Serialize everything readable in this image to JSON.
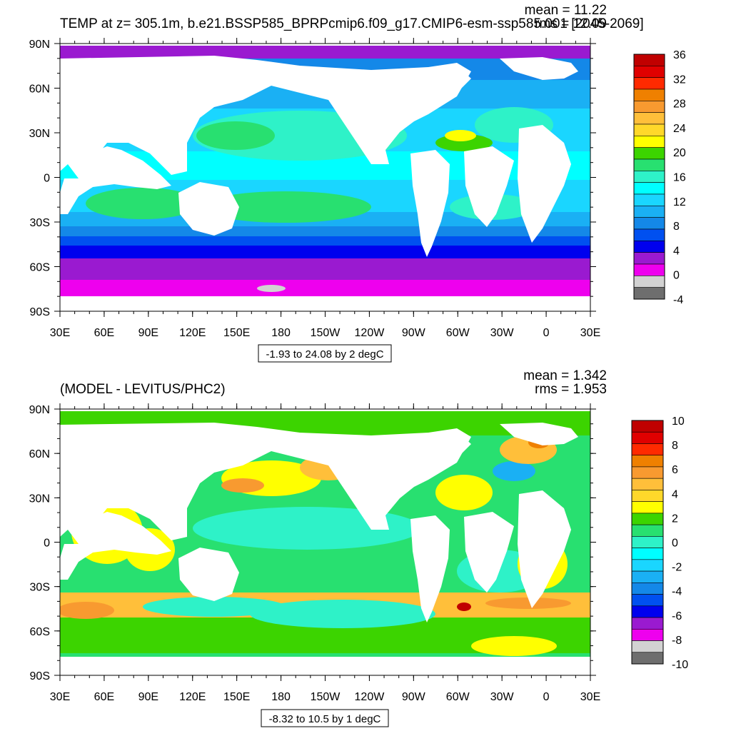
{
  "panels": [
    {
      "id": "top",
      "title": "TEMP at z= 305.1m, b.e21.BSSP585_BPRPcmip6.f09_g17.CMIP6-esm-ssp585.001 [2045-2069]",
      "mean": "mean = 11.22",
      "rms": "rms = 12.09",
      "subtitle": "-1.93 to 24.08 by 2 degC",
      "lat_labels": [
        "90N",
        "60N",
        "30N",
        "0",
        "30S",
        "60S",
        "90S"
      ],
      "lon_labels": [
        "30E",
        "60E",
        "90E",
        "120E",
        "150E",
        "180",
        "150W",
        "120W",
        "90W",
        "60W",
        "30W",
        "0",
        "30E"
      ],
      "colorbar_labels": [
        "36",
        "32",
        "28",
        "24",
        "20",
        "16",
        "12",
        "8",
        "4",
        "0",
        "-4"
      ],
      "colorbar_colors": [
        "#c00000",
        "#e00000",
        "#ff2a00",
        "#ef8000",
        "#f89a30",
        "#ffbf3a",
        "#ffd82a",
        "#ffff00",
        "#3cd400",
        "#28e070",
        "#2ef2c8",
        "#00ffff",
        "#1ad6ff",
        "#1ab0f4",
        "#1488e8",
        "#0050f0",
        "#0000ee",
        "#9a1ad0",
        "#ee00ee",
        "#d2d2d2",
        "#6e6e6e"
      ]
    },
    {
      "id": "bottom",
      "title": "(MODEL - LEVITUS/PHC2)",
      "mean": "mean = 1.342",
      "rms": "rms = 1.953",
      "subtitle": "-8.32 to 10.5 by 1 degC",
      "lat_labels": [
        "90N",
        "60N",
        "30N",
        "0",
        "30S",
        "60S",
        "90S"
      ],
      "lon_labels": [
        "30E",
        "60E",
        "90E",
        "120E",
        "150E",
        "180",
        "150W",
        "120W",
        "90W",
        "60W",
        "30W",
        "0",
        "30E"
      ],
      "colorbar_labels": [
        "10",
        "8",
        "6",
        "4",
        "2",
        "0",
        "-2",
        "-4",
        "-6",
        "-8",
        "-10"
      ],
      "colorbar_colors": [
        "#c00000",
        "#e00000",
        "#ff2a00",
        "#ef8000",
        "#f89a30",
        "#ffbf3a",
        "#ffd82a",
        "#ffff00",
        "#3cd400",
        "#28e070",
        "#2ef2c8",
        "#00ffff",
        "#1ad6ff",
        "#1ab0f4",
        "#1488e8",
        "#0050f0",
        "#0000ee",
        "#9a1ad0",
        "#ee00ee",
        "#d2d2d2",
        "#6e6e6e"
      ]
    }
  ],
  "colors": {
    "land": "#ffffff",
    "frame": "#000000",
    "contour": "#000000"
  }
}
